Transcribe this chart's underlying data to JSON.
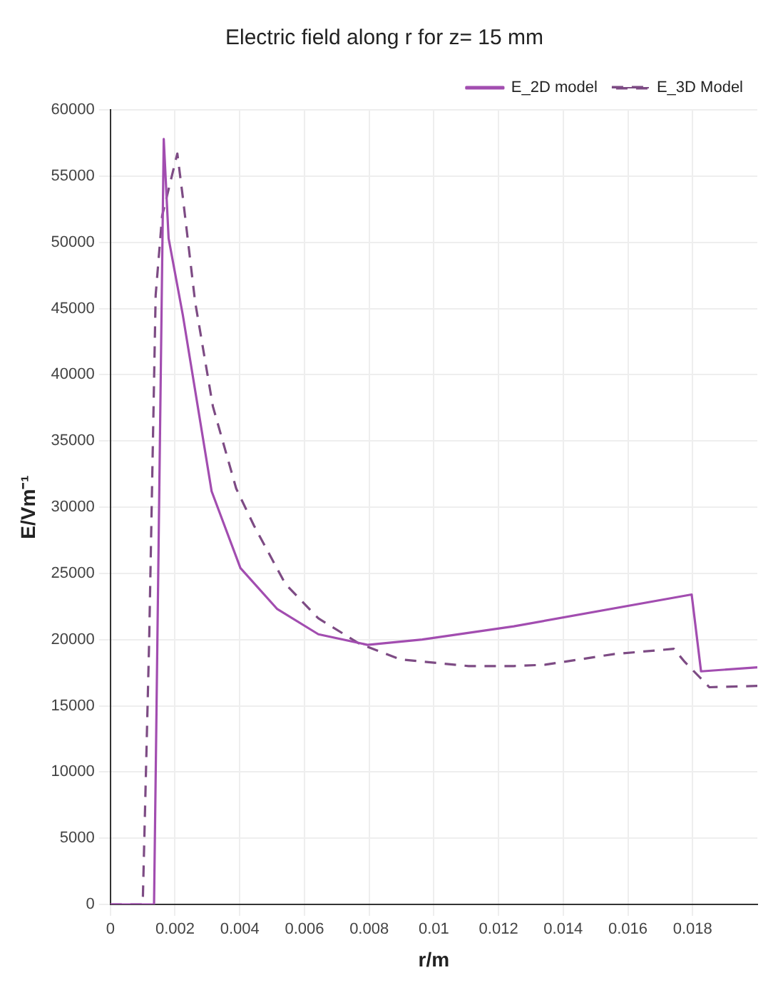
{
  "chart_data": {
    "type": "line",
    "title": "Electric field along r for z= 15 mm",
    "xlabel": "r/m",
    "ylabel": "E/Vm⁻¹",
    "xlim": [
      0,
      0.02
    ],
    "xticks": [
      0,
      0.002,
      0.004,
      0.006,
      0.008,
      0.01,
      0.012,
      0.014,
      0.016,
      0.018
    ],
    "ylim": [
      0,
      60000
    ],
    "yticks": [
      0,
      5000,
      10000,
      15000,
      20000,
      25000,
      30000,
      35000,
      40000,
      45000,
      50000,
      55000,
      60000
    ],
    "grid": true,
    "legend": "top right",
    "marker": "none",
    "series": [
      {
        "name": "E_2D model",
        "color": "#a24db0",
        "line_style": "solid",
        "x": [
          0,
          0.00135,
          0.00165,
          0.0018,
          0.00224,
          0.00313,
          0.00402,
          0.00516,
          0.00643,
          0.00795,
          0.00964,
          0.01247,
          0.01797,
          0.01826,
          0.02
        ],
        "values": [
          0,
          0,
          57800,
          50300,
          44500,
          31200,
          25400,
          22300,
          20400,
          19600,
          20000,
          21000,
          23400,
          17600,
          17900
        ]
      },
      {
        "name": "E_3D Model",
        "color": "#7d4b84",
        "line_style": "dashed",
        "x": [
          0,
          0.001,
          0.0012,
          0.0014,
          0.0016,
          0.00207,
          0.00224,
          0.00262,
          0.00317,
          0.00389,
          0.00444,
          0.00541,
          0.00643,
          0.00769,
          0.00896,
          0.01107,
          0.01247,
          0.01344,
          0.01556,
          0.01742,
          0.01776,
          0.01852,
          0.02
        ],
        "values": [
          0,
          0,
          20000,
          46000,
          52000,
          56700,
          53400,
          45500,
          37600,
          31400,
          28600,
          24200,
          21600,
          19700,
          18500,
          18000,
          18000,
          18100,
          18900,
          19300,
          18300,
          16400,
          16500
        ]
      }
    ]
  }
}
